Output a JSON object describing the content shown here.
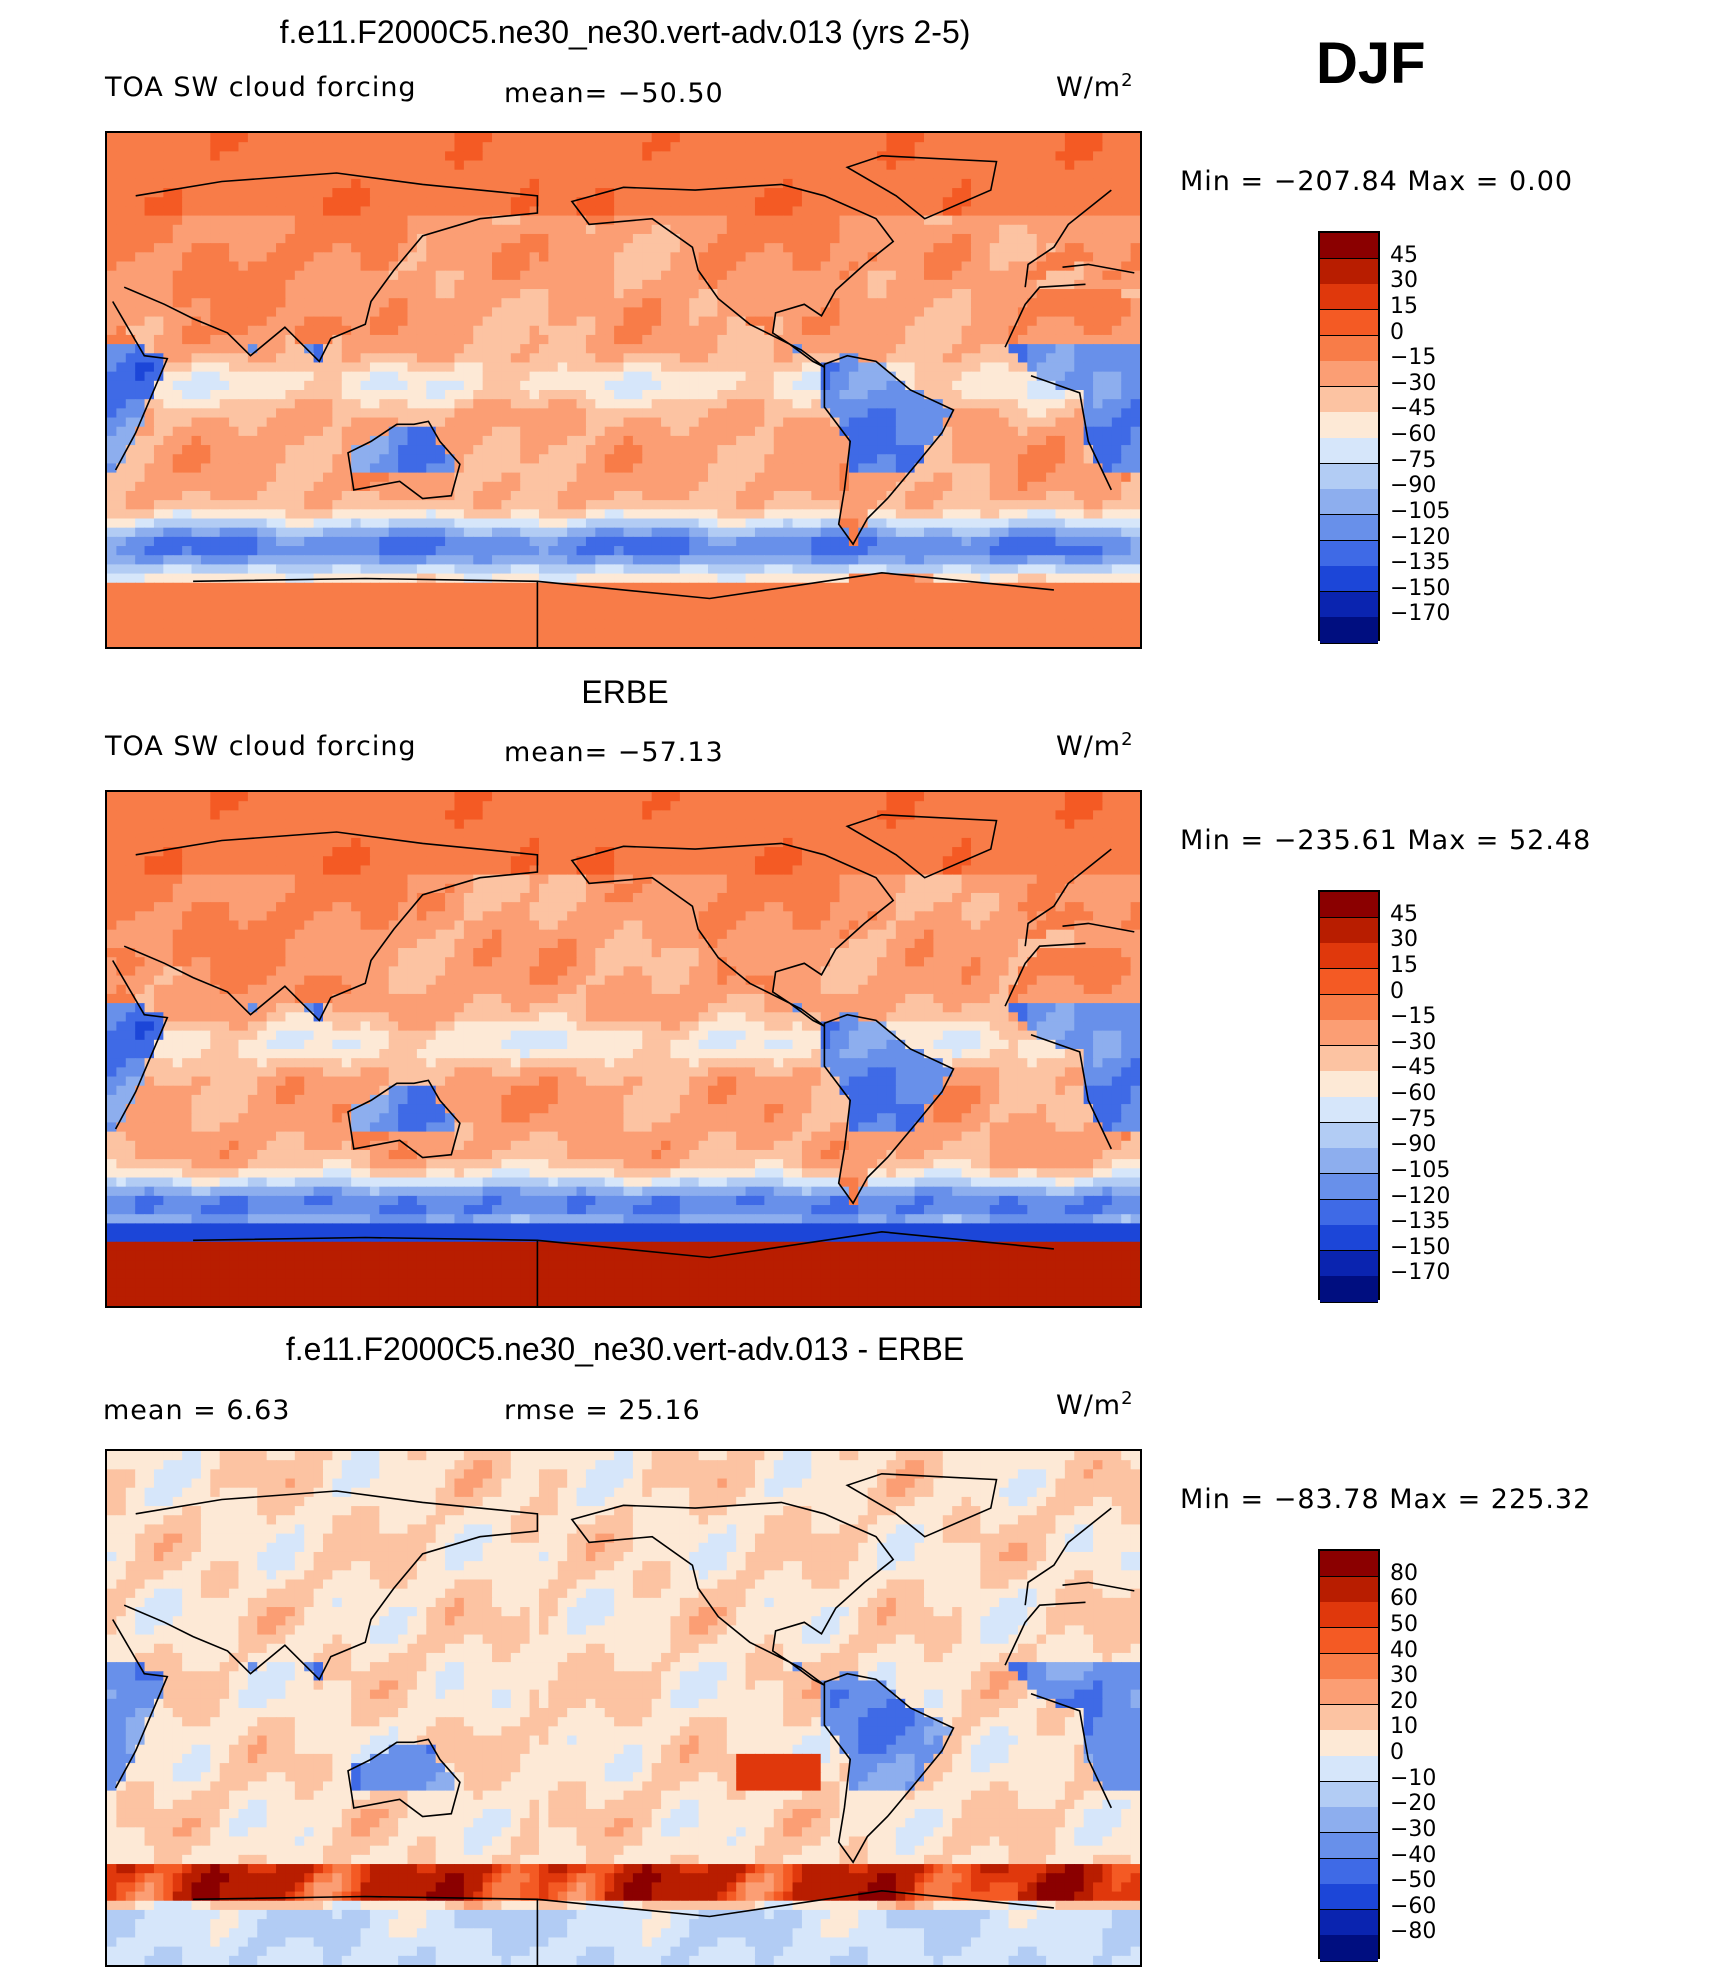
{
  "season": "DJF",
  "panels": [
    {
      "title": "f.e11.F2000C5.ne30_ne30.vert-adv.013 (yrs 2-5)",
      "left_label": "TOA SW cloud forcing",
      "mid_label": "mean=  −50.50",
      "units": "W/m",
      "units_sup": "2",
      "minmax": "Min  =  −207.84  Max  =     0.00",
      "colorbar": {
        "labels": [
          "45",
          "30",
          "15",
          "0",
          "−15",
          "−30",
          "−45",
          "−60",
          "−75",
          "−90",
          "−105",
          "−120",
          "−135",
          "−150",
          "−170"
        ],
        "colors": [
          "#8b0000",
          "#b81d00",
          "#e0380c",
          "#f45a24",
          "#f87c48",
          "#fb9e74",
          "#fcc3a2",
          "#fde9d6",
          "#d6e6fa",
          "#b2ccf4",
          "#8daeee",
          "#6890ea",
          "#3f6ae6",
          "#1c46d8",
          "#0a24b0",
          "#000e80"
        ]
      },
      "field": "model"
    },
    {
      "title": "ERBE",
      "left_label": "TOA SW cloud forcing",
      "mid_label": "mean=  −57.13",
      "units": "W/m",
      "units_sup": "2",
      "minmax": "Min  =  −235.61  Max  =   52.48",
      "colorbar": {
        "labels": [
          "45",
          "30",
          "15",
          "0",
          "−15",
          "−30",
          "−45",
          "−60",
          "−75",
          "−90",
          "−105",
          "−120",
          "−135",
          "−150",
          "−170"
        ],
        "colors": [
          "#8b0000",
          "#b81d00",
          "#e0380c",
          "#f45a24",
          "#f87c48",
          "#fb9e74",
          "#fcc3a2",
          "#fde9d6",
          "#d6e6fa",
          "#b2ccf4",
          "#8daeee",
          "#6890ea",
          "#3f6ae6",
          "#1c46d8",
          "#0a24b0",
          "#000e80"
        ]
      },
      "field": "obs"
    },
    {
      "title": "f.e11.F2000C5.ne30_ne30.vert-adv.013 - ERBE",
      "left_label": "mean =     6.63",
      "mid_label": "rmse  =   25.16",
      "units": "W/m",
      "units_sup": "2",
      "minmax": "Min  =  −83.78  Max  =  225.32",
      "colorbar": {
        "labels": [
          "80",
          "60",
          "50",
          "40",
          "30",
          "20",
          "10",
          "0",
          "−10",
          "−20",
          "−30",
          "−40",
          "−50",
          "−60",
          "−80"
        ],
        "colors": [
          "#8b0000",
          "#b81d00",
          "#e0380c",
          "#f45a24",
          "#f87c48",
          "#fb9e74",
          "#fcc3a2",
          "#fde9d6",
          "#d6e6fa",
          "#b2ccf4",
          "#8daeee",
          "#6890ea",
          "#3f6ae6",
          "#1c46d8",
          "#0a24b0",
          "#000e80"
        ]
      },
      "field": "diff"
    }
  ]
}
